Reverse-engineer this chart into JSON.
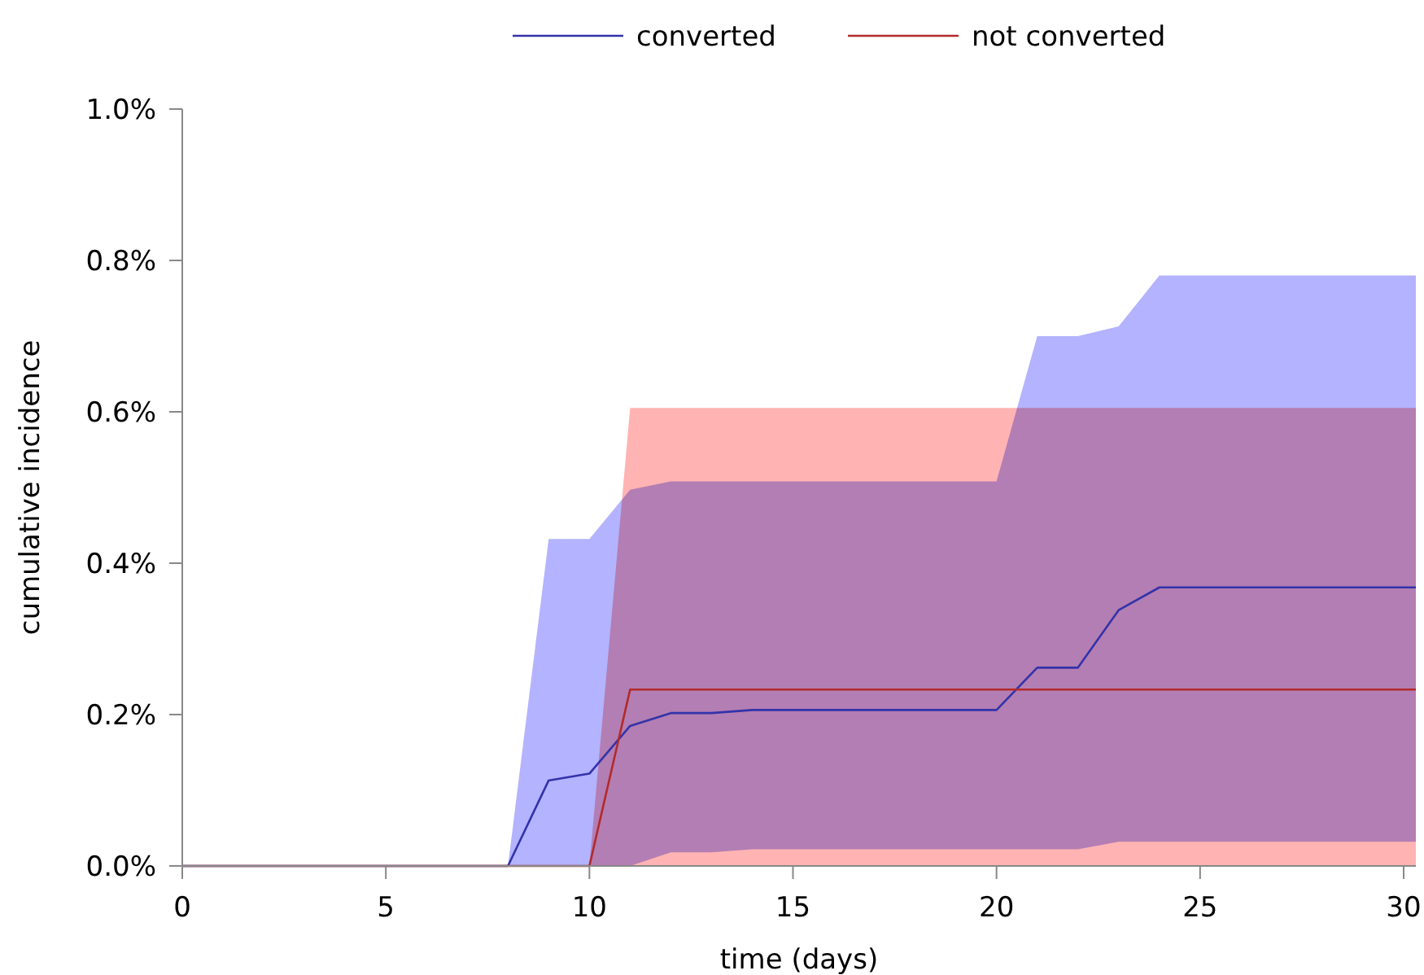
{
  "chart_data": {
    "type": "line",
    "xlabel": "time (days)",
    "ylabel": "cumulative incidence",
    "xlim": [
      0,
      30.3
    ],
    "xticks": [
      0,
      5,
      10,
      15,
      20,
      25,
      30
    ],
    "ylim": [
      0,
      1.0
    ],
    "yticks": [
      {
        "value": 0,
        "label": "0.0%"
      },
      {
        "value": 0.2,
        "label": "0.2%"
      },
      {
        "value": 0.4,
        "label": "0.4%"
      },
      {
        "value": 0.6,
        "label": "0.6%"
      },
      {
        "value": 0.8,
        "label": "0.8%"
      },
      {
        "value": 1.0,
        "label": "1.0%"
      }
    ],
    "legend": "top",
    "grid": false,
    "series": [
      {
        "name": "converted",
        "color": "#3333aa",
        "x": [
          0,
          8,
          9,
          10,
          11,
          12,
          13,
          14,
          20,
          21,
          22,
          23,
          24,
          30.3
        ],
        "values": [
          0,
          0,
          0.113,
          0.122,
          0.185,
          0.202,
          0.202,
          0.206,
          0.206,
          0.262,
          0.262,
          0.338,
          0.368,
          0.368
        ],
        "lower": [
          0,
          0,
          0,
          0,
          0,
          0.018,
          0.018,
          0.022,
          0.022,
          0.022,
          0.022,
          0.032,
          0.032,
          0.032
        ],
        "upper": [
          0,
          0,
          0.432,
          0.432,
          0.497,
          0.508,
          0.508,
          0.508,
          0.508,
          0.7,
          0.7,
          0.713,
          0.78,
          0.78
        ]
      },
      {
        "name": "not converted",
        "color": "#b22a2a",
        "x": [
          0,
          10,
          11,
          30.3
        ],
        "values": [
          0,
          0,
          0.233,
          0.233
        ],
        "lower": [
          0,
          0,
          0,
          0
        ],
        "upper": [
          0,
          0,
          0.605,
          0.605
        ]
      }
    ]
  }
}
